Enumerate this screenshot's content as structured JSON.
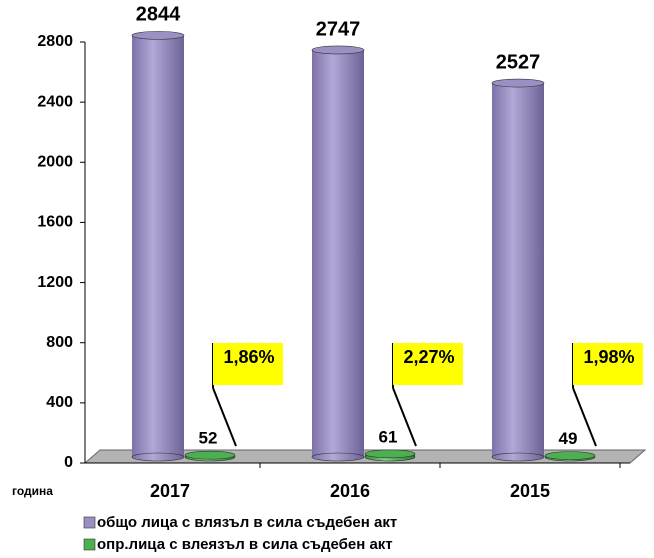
{
  "chart_data": {
    "type": "bar",
    "x_label": "година",
    "categories": [
      "2017",
      "2016",
      "2015"
    ],
    "series": [
      {
        "name": "общо лица с влязъл в сила съдебен акт",
        "color": "#9b8fc4",
        "values": [
          2844,
          2747,
          2527
        ]
      },
      {
        "name": "опр.лица с влеязъл в сила съдебен акт",
        "color": "#4caf50",
        "values": [
          52,
          61,
          49
        ]
      }
    ],
    "annotations": [
      "1,86%",
      "2,27%",
      "1,98%"
    ],
    "ylim": [
      0,
      2800
    ],
    "yticks": [
      0,
      400,
      800,
      1200,
      1600,
      2000,
      2400,
      2800
    ],
    "legend": "bottom"
  }
}
